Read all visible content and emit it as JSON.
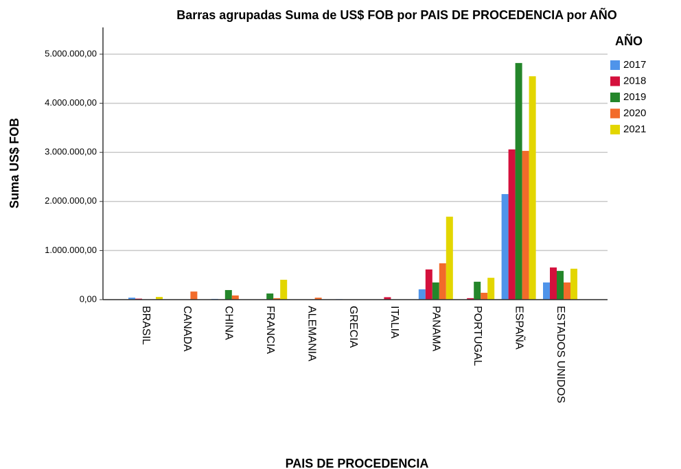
{
  "chart_data": {
    "type": "bar",
    "title": "Barras agrupadas Suma de US$ FOB por PAIS DE PROCEDENCIA por AÑO",
    "x_label": "PAIS DE PROCEDENCIA",
    "y_label": "Suma US$ FOB",
    "legend_title": "AÑO",
    "legend": "right",
    "grid": true,
    "categories": [
      "BRASIL",
      "CANADA",
      "CHINA",
      "FRANCIA",
      "ALEMANIA",
      "GRECIA",
      "ITALIA",
      "PANAMA",
      "PORTUGAL",
      "ESPAÑA",
      "ESTADOS UNIDOS"
    ],
    "series": [
      {
        "name": "2017",
        "color": "#4f94ea",
        "values": [
          40000,
          0,
          15000,
          0,
          0,
          10000,
          0,
          210000,
          0,
          2150000,
          350000
        ]
      },
      {
        "name": "2018",
        "color": "#d4103c",
        "values": [
          20000,
          0,
          0,
          0,
          0,
          0,
          50000,
          615000,
          30000,
          3060000,
          655000
        ]
      },
      {
        "name": "2019",
        "color": "#24862a",
        "values": [
          0,
          0,
          195000,
          125000,
          0,
          0,
          0,
          350000,
          365000,
          4820000,
          585000
        ]
      },
      {
        "name": "2020",
        "color": "#f26b2a",
        "values": [
          0,
          165000,
          85000,
          30000,
          40000,
          0,
          0,
          740000,
          140000,
          3030000,
          350000
        ]
      },
      {
        "name": "2021",
        "color": "#e3d600",
        "values": [
          55000,
          0,
          0,
          405000,
          0,
          0,
          0,
          1690000,
          445000,
          4550000,
          630000
        ]
      }
    ],
    "ylim": [
      0,
      5500000
    ],
    "yticks": [
      {
        "value": 0,
        "label": "0,00"
      },
      {
        "value": 1000000,
        "label": "1.000.000,00"
      },
      {
        "value": 2000000,
        "label": "2.000.000,00"
      },
      {
        "value": 3000000,
        "label": "3.000.000,00"
      },
      {
        "value": 4000000,
        "label": "4.000.000,00"
      },
      {
        "value": 5000000,
        "label": "5.000.000,00"
      }
    ]
  }
}
